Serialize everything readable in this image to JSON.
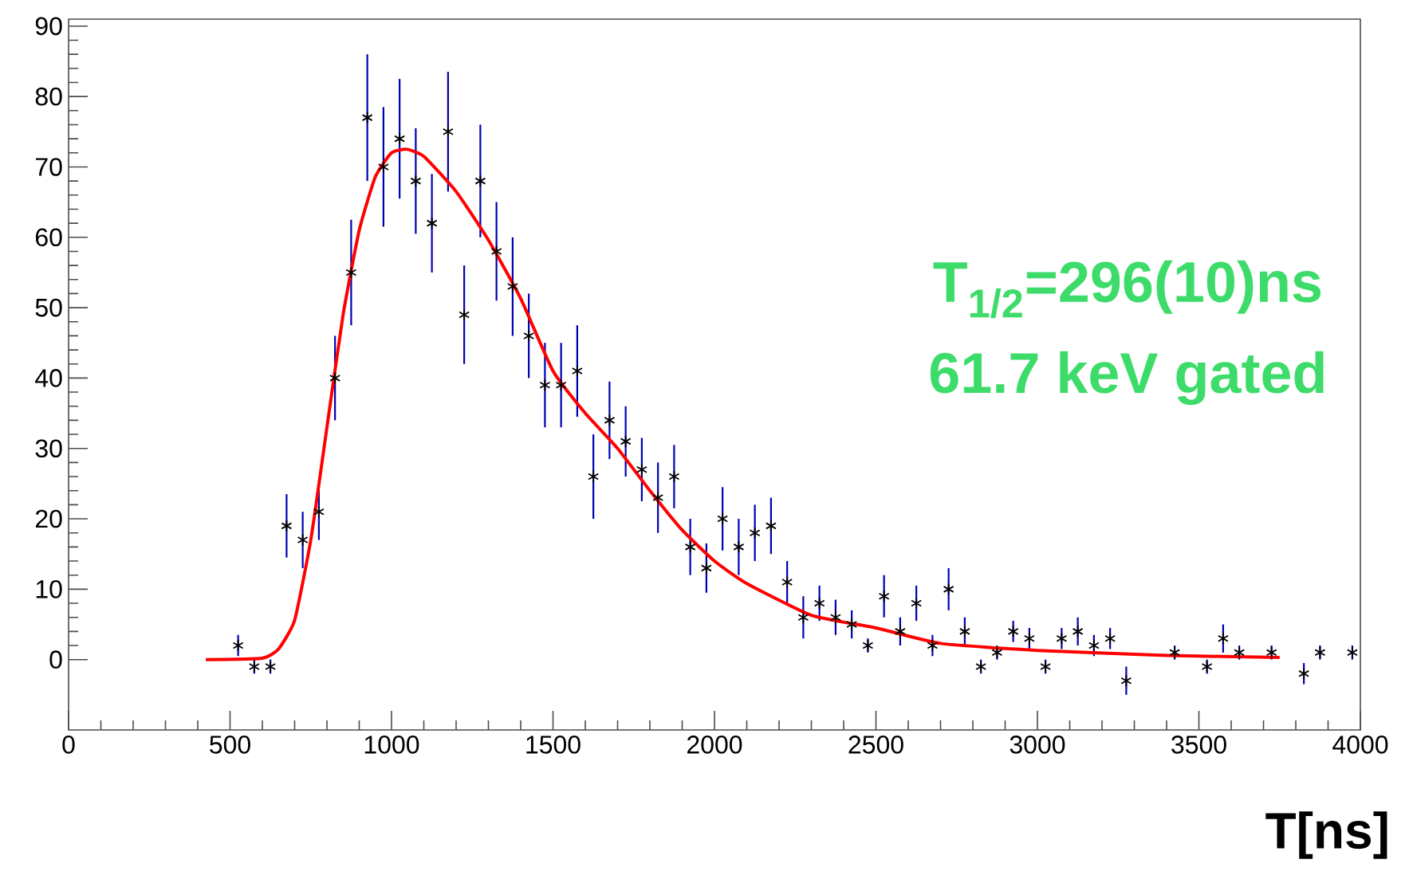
{
  "chart_data": {
    "type": "scatter",
    "xlabel": "T[ns]",
    "xlim": [
      0,
      4000
    ],
    "ylim": [
      -10,
      91
    ],
    "xticks": [
      0,
      500,
      1000,
      1500,
      2000,
      2500,
      3000,
      3500,
      4000
    ],
    "yticks": [
      0,
      10,
      20,
      30,
      40,
      50,
      60,
      70,
      80,
      90
    ],
    "grid": false,
    "marker": "cross",
    "annotations": [
      "T$_{1/2}$=296(10)ns",
      "61.7 keV gated"
    ],
    "series": [
      {
        "color": "#000000",
        "x": [
          525,
          575,
          625,
          675,
          725,
          775,
          825,
          875,
          925,
          975,
          1025,
          1075,
          1125,
          1175,
          1225,
          1275,
          1325,
          1375,
          1425,
          1475,
          1525,
          1575,
          1625,
          1675,
          1725,
          1775,
          1825,
          1875,
          1925,
          1975,
          2025,
          2075,
          2125,
          2175,
          2225,
          2275,
          2325,
          2375,
          2425,
          2475,
          2525,
          2575,
          2625,
          2675,
          2725,
          2775,
          2825,
          2875,
          2925,
          2975,
          3025,
          3075,
          3125,
          3175,
          3225,
          3275,
          3425,
          3525,
          3575,
          3625,
          3725,
          3825,
          3875,
          3975
        ],
        "values": [
          2,
          -1,
          -1,
          19,
          17,
          21,
          40,
          55,
          77,
          70,
          74,
          68,
          62,
          75,
          49,
          68,
          58,
          53,
          46,
          39,
          39,
          41,
          26,
          34,
          31,
          27,
          23,
          26,
          16,
          13,
          20,
          16,
          18,
          19,
          11,
          6,
          8,
          6,
          5,
          2,
          9,
          4,
          8,
          2,
          10,
          4,
          -1,
          1,
          4,
          3,
          -1,
          3,
          4,
          2,
          3,
          -3,
          1,
          -1,
          3,
          1,
          1,
          -2,
          1,
          1
        ],
        "errors": [
          1.5,
          1,
          1,
          4.5,
          4,
          4,
          6,
          7.5,
          9,
          8.5,
          8.5,
          7.5,
          7,
          8.5,
          7,
          8,
          7,
          7,
          6,
          6,
          6,
          6.5,
          6,
          5.5,
          5,
          4.5,
          5,
          4.5,
          4,
          3.5,
          4.5,
          4,
          4,
          4,
          3,
          3,
          2.5,
          2.5,
          2,
          1,
          3,
          2,
          2.5,
          1.5,
          3,
          2,
          1,
          1,
          1.5,
          1.5,
          1,
          1.5,
          2,
          1.5,
          1.5,
          2,
          1,
          1,
          2,
          1,
          1,
          1.5,
          1,
          1
        ]
      },
      {
        "type": "line",
        "color": "#ff0000",
        "marker": "none",
        "x": [
          425,
          600,
          650,
          700,
          750,
          800,
          850,
          900,
          950,
          1000,
          1047,
          1100,
          1200,
          1300,
          1400,
          1500,
          1600,
          1700,
          1800,
          1900,
          2000,
          2100,
          2300,
          2500,
          2700,
          3000,
          3400,
          3750
        ],
        "values": [
          0,
          0.2,
          1.5,
          5.6,
          17,
          33,
          49,
          61,
          68.6,
          72,
          72.5,
          71.5,
          66.5,
          59.6,
          51.3,
          41,
          35,
          30,
          24,
          18.4,
          14,
          10.8,
          6.3,
          4.5,
          2.3,
          1.3,
          0.6,
          0.3
        ]
      }
    ]
  }
}
